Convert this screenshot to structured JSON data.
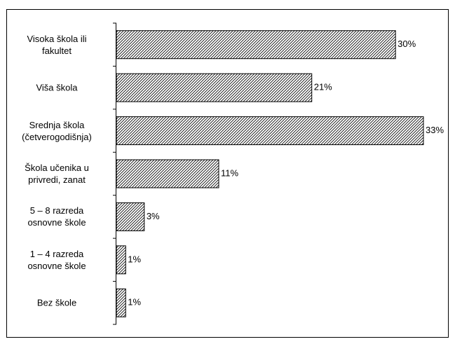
{
  "chart_data": {
    "type": "bar",
    "orientation": "horizontal",
    "categories": [
      "Visoka škola ili\nfakultet",
      "Viša škola",
      "Srednja škola\n(četverogodišnja)",
      "Škola učenika u\nprivredi, zanat",
      "5 – 8 razreda\nosnovne škole",
      "1 – 4 razreda\nosnovne škole",
      "Bez škole"
    ],
    "values": [
      30,
      21,
      33,
      11,
      3,
      1,
      1
    ],
    "value_labels": [
      "30%",
      "21%",
      "33%",
      "11%",
      "3%",
      "1%",
      "1%"
    ],
    "color": "#000000",
    "hatch": true
  }
}
